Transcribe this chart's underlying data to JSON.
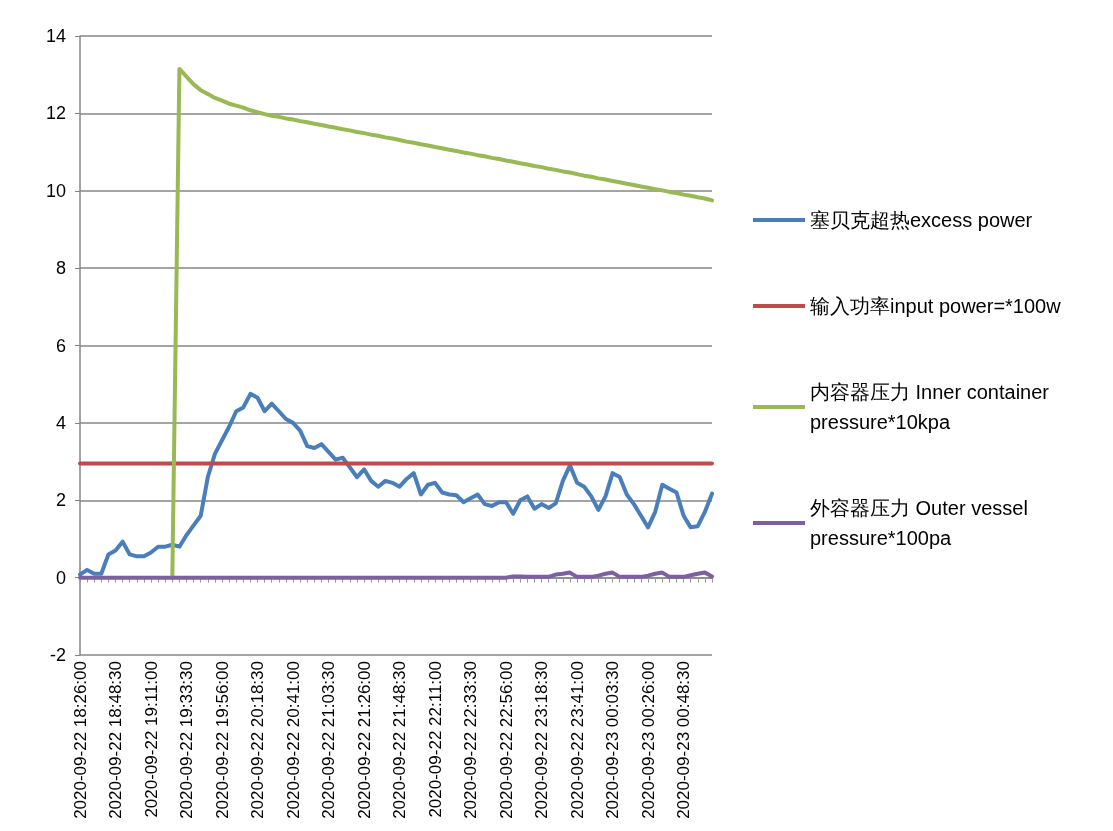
{
  "chart_data": {
    "type": "line",
    "categories": [
      "2020-09-22 18:26:00",
      null,
      null,
      null,
      null,
      "2020-09-22 18:48:30",
      null,
      null,
      null,
      null,
      "2020-09-22 19:11:00",
      null,
      null,
      null,
      null,
      "2020-09-22 19:33:30",
      null,
      null,
      null,
      null,
      "2020-09-22 19:56:00",
      null,
      null,
      null,
      null,
      "2020-09-22 20:18:30",
      null,
      null,
      null,
      null,
      "2020-09-22 20:41:00",
      null,
      null,
      null,
      null,
      "2020-09-22 21:03:30",
      null,
      null,
      null,
      null,
      "2020-09-22 21:26:00",
      null,
      null,
      null,
      null,
      "2020-09-22 21:48:30",
      null,
      null,
      null,
      null,
      "2020-09-22 22:11:00",
      null,
      null,
      null,
      null,
      "2020-09-22 22:33:30",
      null,
      null,
      null,
      null,
      "2020-09-22 22:56:00",
      null,
      null,
      null,
      null,
      "2020-09-22 23:18:30",
      null,
      null,
      null,
      null,
      "2020-09-22 23:41:00",
      null,
      null,
      null,
      null,
      "2020-09-23 00:03:30",
      null,
      null,
      null,
      null,
      "2020-09-23 00:26:00",
      null,
      null,
      null,
      null,
      "2020-09-23 00:48:30",
      null,
      null,
      null,
      null
    ],
    "series": [
      {
        "name": "塞贝克超热excess power",
        "color": "#4a7ebb",
        "values": [
          0.08,
          0.2,
          0.1,
          0.1,
          0.6,
          0.7,
          0.93,
          0.6,
          0.55,
          0.55,
          0.65,
          0.8,
          0.8,
          0.85,
          0.8,
          1.1,
          1.35,
          1.6,
          2.6,
          3.2,
          3.55,
          3.9,
          4.3,
          4.4,
          4.75,
          4.65,
          4.3,
          4.5,
          4.3,
          4.1,
          4.0,
          3.8,
          3.4,
          3.35,
          3.45,
          3.25,
          3.05,
          3.1,
          2.85,
          2.6,
          2.8,
          2.5,
          2.35,
          2.5,
          2.45,
          2.35,
          2.55,
          2.7,
          2.15,
          2.4,
          2.45,
          2.2,
          2.15,
          2.13,
          1.95,
          2.05,
          2.15,
          1.9,
          1.85,
          1.95,
          1.95,
          1.65,
          2.0,
          2.1,
          1.78,
          1.9,
          1.8,
          1.92,
          2.5,
          2.9,
          2.45,
          2.35,
          2.1,
          1.75,
          2.1,
          2.7,
          2.6,
          2.15,
          1.9,
          1.6,
          1.3,
          1.7,
          2.4,
          2.3,
          2.2,
          1.6,
          1.3,
          1.33,
          1.7,
          2.17
        ]
      },
      {
        "name": "输入功率input power=*100w",
        "color": "#be4b48",
        "values": [
          2.95,
          2.95,
          2.95,
          2.95,
          2.95,
          2.95,
          2.95,
          2.95,
          2.95,
          2.95,
          2.95,
          2.95,
          2.95,
          2.95,
          2.95,
          2.95,
          2.95,
          2.95,
          2.95,
          2.95,
          2.95,
          2.95,
          2.95,
          2.95,
          2.95,
          2.95,
          2.95,
          2.95,
          2.95,
          2.95,
          2.95,
          2.95,
          2.95,
          2.95,
          2.95,
          2.95,
          2.95,
          2.95,
          2.95,
          2.95,
          2.95,
          2.95,
          2.95,
          2.95,
          2.95,
          2.95,
          2.95,
          2.95,
          2.95,
          2.95,
          2.95,
          2.95,
          2.95,
          2.95,
          2.95,
          2.95,
          2.95,
          2.95,
          2.95,
          2.95,
          2.95,
          2.95,
          2.95,
          2.95,
          2.95,
          2.95,
          2.95,
          2.95,
          2.95,
          2.95,
          2.95,
          2.95,
          2.95,
          2.95,
          2.95,
          2.95,
          2.95,
          2.95,
          2.95,
          2.95,
          2.95,
          2.95,
          2.95,
          2.95,
          2.95,
          2.95,
          2.95,
          2.95,
          2.95,
          2.95
        ]
      },
      {
        "name": "内容器压力 Inner container pressure*10kpa",
        "color": "#98b954",
        "values": [
          null,
          null,
          null,
          null,
          null,
          null,
          null,
          null,
          null,
          null,
          null,
          null,
          null,
          0,
          13.15,
          12.95,
          12.75,
          12.6,
          12.5,
          12.4,
          12.33,
          12.25,
          12.2,
          12.15,
          12.08,
          12.03,
          11.98,
          11.94,
          11.91,
          11.87,
          11.84,
          11.8,
          11.77,
          11.73,
          11.7,
          11.66,
          11.63,
          11.59,
          11.56,
          11.52,
          11.49,
          11.45,
          11.42,
          11.38,
          11.35,
          11.31,
          11.27,
          11.24,
          11.2,
          11.17,
          11.13,
          11.1,
          11.06,
          11.03,
          10.99,
          10.96,
          10.92,
          10.89,
          10.85,
          10.82,
          10.78,
          10.75,
          10.71,
          10.68,
          10.64,
          10.61,
          10.57,
          10.54,
          10.5,
          10.47,
          10.43,
          10.39,
          10.36,
          10.32,
          10.29,
          10.25,
          10.22,
          10.18,
          10.15,
          10.11,
          10.08,
          10.04,
          10.01,
          9.97,
          9.94,
          9.9,
          9.87,
          9.83,
          9.8,
          9.75
        ]
      },
      {
        "name": "外容器压力 Outer vessel pressure*100pa",
        "color": "#7d60a0",
        "values": [
          0,
          0,
          0,
          0,
          0,
          0,
          0,
          0,
          0,
          0,
          0,
          0,
          0,
          0,
          0,
          0,
          0,
          0,
          0,
          0,
          0,
          0,
          0,
          0,
          0,
          0,
          0,
          0,
          0,
          0,
          0,
          0,
          0,
          0,
          0,
          0,
          0,
          0,
          0,
          0,
          0,
          0,
          0,
          0,
          0,
          0,
          0,
          0,
          0,
          0,
          0,
          0,
          0,
          0,
          0,
          0,
          0,
          0,
          0,
          0,
          0,
          0.03,
          0.03,
          0.02,
          0.02,
          0.02,
          0.02,
          0.08,
          0.1,
          0.13,
          0.02,
          0.02,
          0.02,
          0.05,
          0.1,
          0.13,
          0.02,
          0.02,
          0.02,
          0.02,
          0.05,
          0.1,
          0.13,
          0.02,
          0.02,
          0.02,
          0.06,
          0.1,
          0.13,
          0.03
        ]
      }
    ],
    "ylim": [
      -2,
      14
    ],
    "yticks": [
      -2,
      0,
      2,
      4,
      6,
      8,
      10,
      12,
      14
    ],
    "grid": "y",
    "legend": "right",
    "marker": "none"
  }
}
